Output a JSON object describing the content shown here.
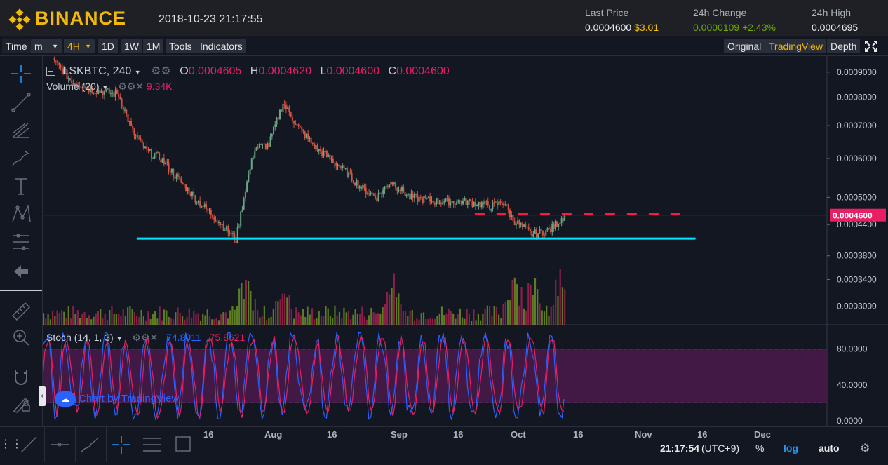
{
  "header": {
    "brand": "BINANCE",
    "datetime": "2018-10-23 21:17:55",
    "stats": [
      {
        "label": "Last Price",
        "value": "0.0004600",
        "extra": "$3.01"
      },
      {
        "label": "24h Change",
        "value": "0.0000109",
        "extra": "+2.43%"
      },
      {
        "label": "24h High",
        "value": "0.0004695",
        "extra": ""
      }
    ]
  },
  "toolbar": {
    "time_label": "Time",
    "unit": "m",
    "interval": "4H",
    "ranges": [
      "1D",
      "1W",
      "1M"
    ],
    "tools": "Tools",
    "indicators": "Indicators",
    "view_original": "Original",
    "view_tradingview": "TradingView",
    "view_depth": "Depth"
  },
  "legend": {
    "symbol": "LSKBTC, 240",
    "o_label": "O",
    "o": "0.0004605",
    "h_label": "H",
    "h": "0.0004620",
    "l_label": "L",
    "l": "0.0004600",
    "c_label": "C",
    "c": "0.0004600",
    "volume_label": "Volume (20)",
    "volume_value": "9.34K",
    "stoch_label": "Stoch (14, 1, 3)",
    "stoch_k": "74.8011",
    "stoch_d": "75.8621",
    "watermark": "Chart by TradingView"
  },
  "price_axis": {
    "ticks": [
      "0.0009000",
      "0.0008000",
      "0.0007000",
      "0.0006000",
      "0.0005000",
      "0.0004400",
      "0.0003800",
      "0.0003400",
      "0.0003000"
    ],
    "current": "0.0004600"
  },
  "stoch_axis": {
    "ticks": [
      "80.0000",
      "40.0000",
      "0.0000"
    ]
  },
  "time_axis": {
    "ticks": [
      "16",
      "Aug",
      "16",
      "Sep",
      "16",
      "Oct",
      "16",
      "Nov",
      "16",
      "Dec"
    ]
  },
  "bottom": {
    "clock": "21:17:54",
    "tz": "(UTC+9)",
    "percent": "%",
    "log": "log",
    "auto": "auto"
  },
  "colors": {
    "up": "#6ba583",
    "down": "#d75442",
    "support_line": "#00e5ff",
    "resistance_dash": "#ff1744",
    "price_tag": "#e91e63",
    "stoch_k": "#2962ff",
    "stoch_d": "#e91e63",
    "accent": "#f0b90b"
  },
  "chart_data": {
    "type": "candlestick",
    "symbol": "LSKBTC",
    "interval": "240",
    "price_close_path": [
      {
        "date": "2018-07-06",
        "price": 0.00095
      },
      {
        "date": "2018-07-08",
        "price": 0.00091
      },
      {
        "date": "2018-07-10",
        "price": 0.00086
      },
      {
        "date": "2018-07-12",
        "price": 0.00085
      },
      {
        "date": "2018-07-14",
        "price": 0.00083
      },
      {
        "date": "2018-07-17",
        "price": 0.00082
      },
      {
        "date": "2018-07-20",
        "price": 0.00081
      },
      {
        "date": "2018-07-23",
        "price": 0.00068
      },
      {
        "date": "2018-07-26",
        "price": 0.00062
      },
      {
        "date": "2018-07-29",
        "price": 0.0006
      },
      {
        "date": "2018-08-02",
        "price": 0.00054
      },
      {
        "date": "2018-08-06",
        "price": 0.00049
      },
      {
        "date": "2018-08-10",
        "price": 0.00045
      },
      {
        "date": "2018-08-14",
        "price": 0.00041
      },
      {
        "date": "2018-08-16",
        "price": 0.00052
      },
      {
        "date": "2018-08-18",
        "price": 0.00063
      },
      {
        "date": "2018-08-21",
        "price": 0.00064
      },
      {
        "date": "2018-08-24",
        "price": 0.00078
      },
      {
        "date": "2018-08-27",
        "price": 0.0007
      },
      {
        "date": "2018-08-31",
        "price": 0.00063
      },
      {
        "date": "2018-09-05",
        "price": 0.00058
      },
      {
        "date": "2018-09-10",
        "price": 0.00052
      },
      {
        "date": "2018-09-13",
        "price": 0.0005
      },
      {
        "date": "2018-09-16",
        "price": 0.00054
      },
      {
        "date": "2018-09-20",
        "price": 0.0005
      },
      {
        "date": "2018-09-26",
        "price": 0.00049
      },
      {
        "date": "2018-10-02",
        "price": 0.00049
      },
      {
        "date": "2018-10-08",
        "price": 0.00048
      },
      {
        "date": "2018-10-10",
        "price": 0.00049
      },
      {
        "date": "2018-10-12",
        "price": 0.00045
      },
      {
        "date": "2018-10-16",
        "price": 0.00042
      },
      {
        "date": "2018-10-20",
        "price": 0.00043
      },
      {
        "date": "2018-10-23",
        "price": 0.00046
      }
    ],
    "support_level": 0.000412,
    "resistance_level": 0.00046,
    "volume_spikes": [
      {
        "date": "2018-08-16",
        "relative": 0.6
      },
      {
        "date": "2018-08-24",
        "relative": 0.55
      },
      {
        "date": "2018-09-16",
        "relative": 0.65
      },
      {
        "date": "2018-10-12",
        "relative": 0.9
      },
      {
        "date": "2018-10-16",
        "relative": 0.75
      },
      {
        "date": "2018-10-22",
        "relative": 0.6
      }
    ],
    "stoch_bands": [
      20,
      80
    ]
  }
}
